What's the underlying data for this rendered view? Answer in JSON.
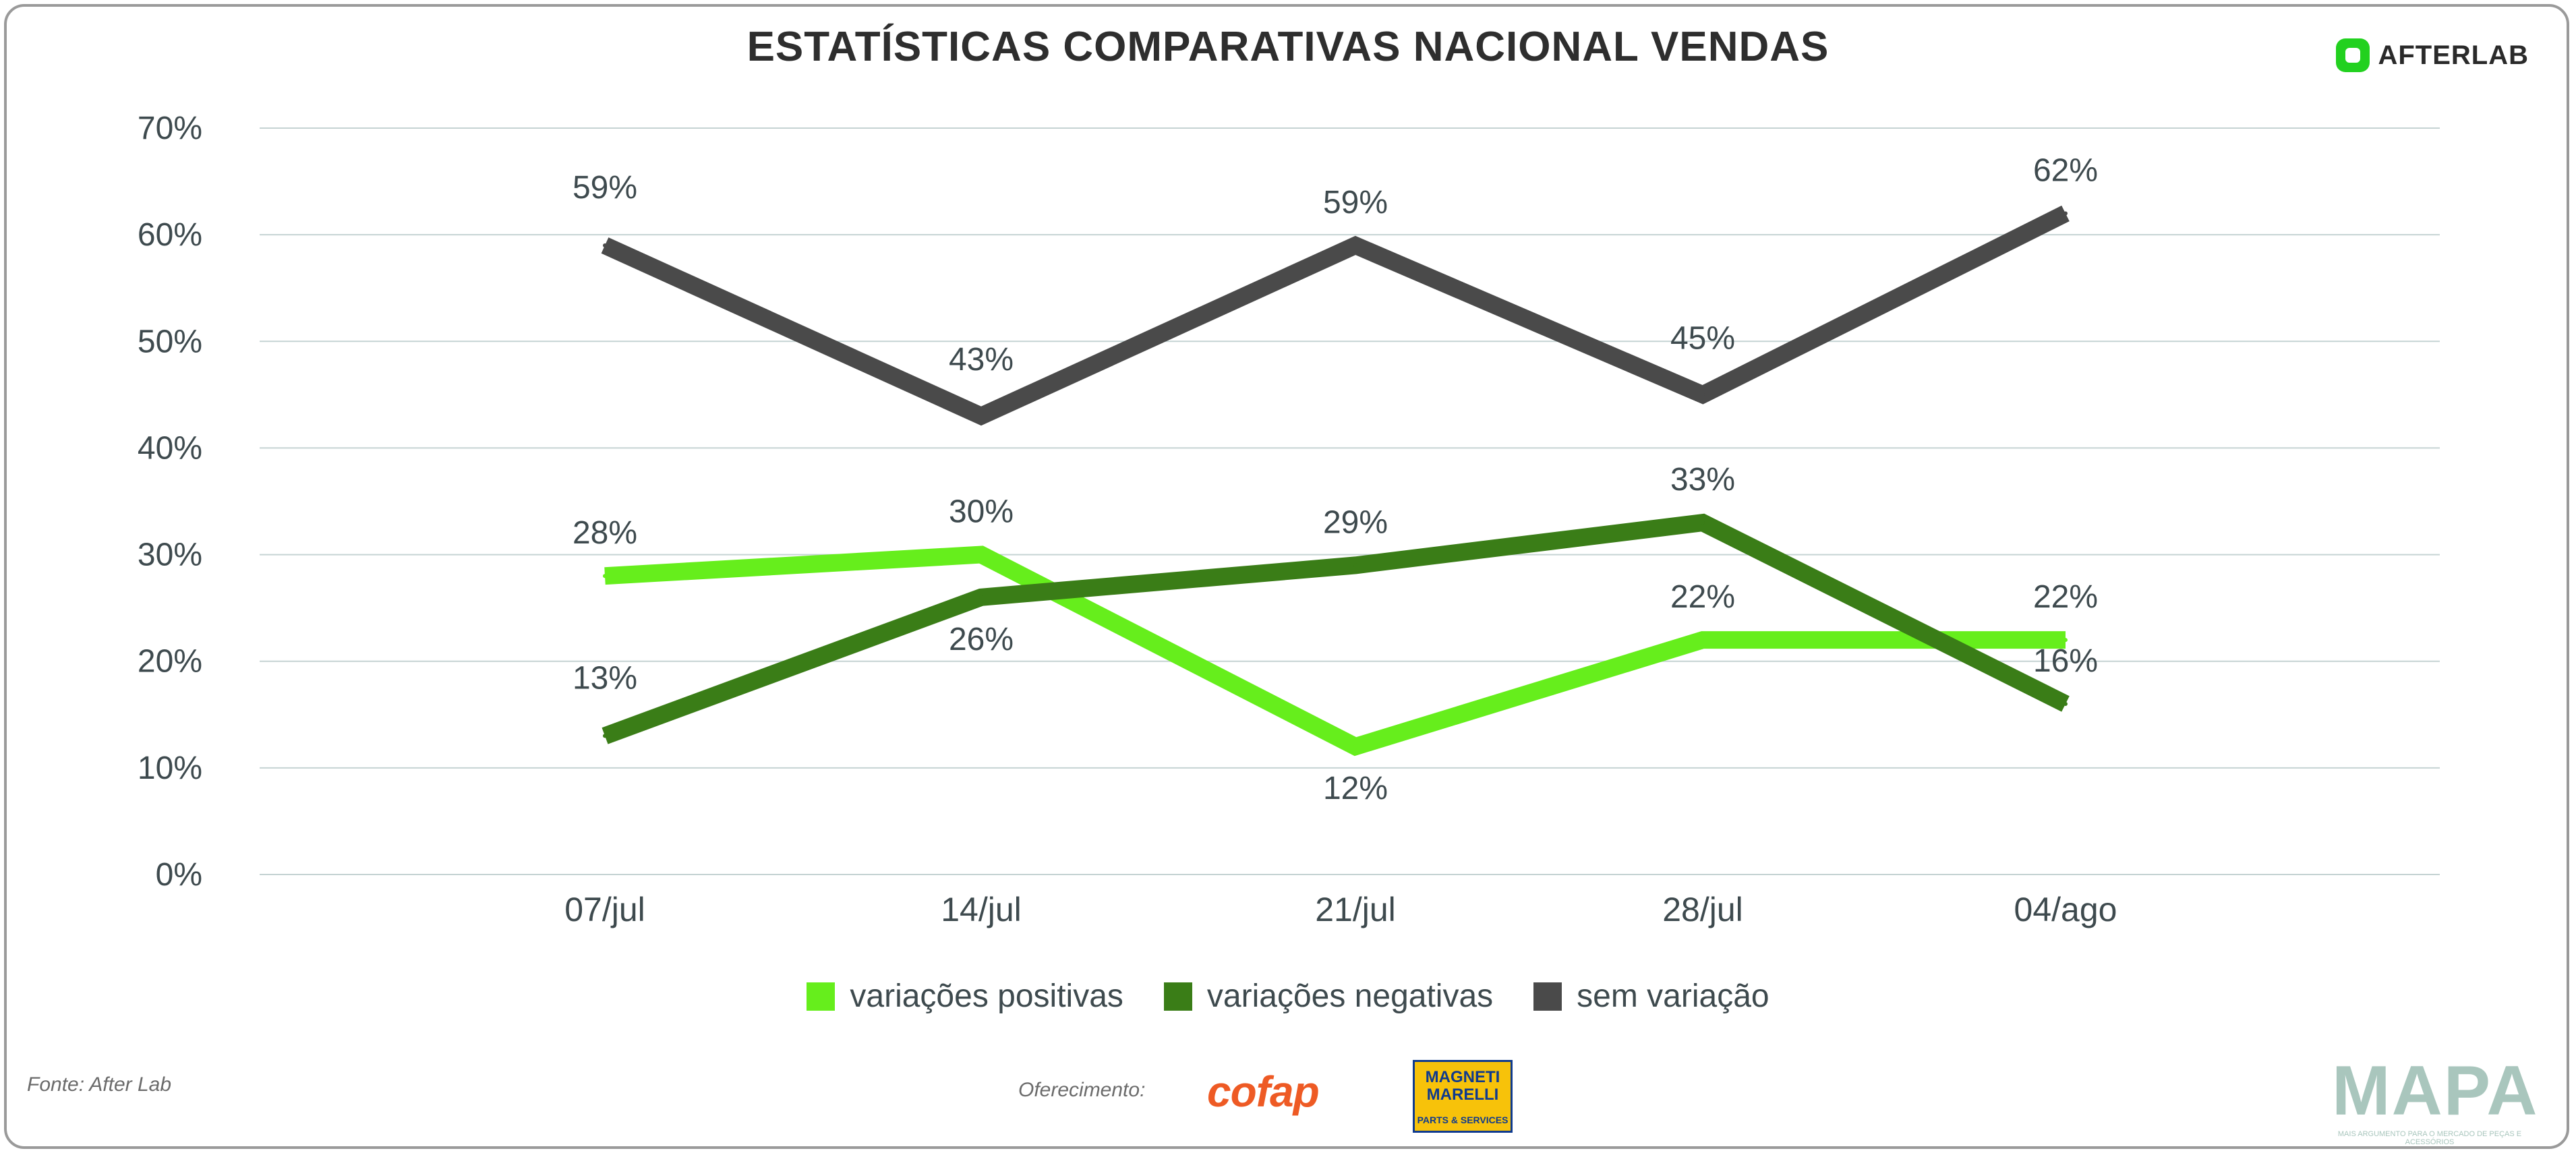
{
  "header": {
    "title": "ESTATÍSTICAS COMPARATIVAS NACIONAL VENDAS",
    "brand": "AFTERLAB"
  },
  "colors": {
    "positive": "#66ee1c",
    "negative": "#3a7d17",
    "neutral": "#4a4a4a",
    "grid": "#c5d3d3",
    "tick_text": "#3e4a4e"
  },
  "chart_data": {
    "type": "line",
    "title": "ESTATÍSTICAS COMPARATIVAS NACIONAL VENDAS",
    "categories": [
      "07/jul",
      "14/jul",
      "21/jul",
      "28/jul",
      "04/ago"
    ],
    "ylim": [
      0,
      70
    ],
    "yticks": [
      "0%",
      "10%",
      "20%",
      "30%",
      "40%",
      "50%",
      "60%",
      "70%"
    ],
    "grid": true,
    "legend_position": "bottom",
    "series": [
      {
        "name": "variações positivas",
        "values": [
          28,
          30,
          12,
          22,
          22
        ],
        "labels": [
          "28%",
          "30%",
          "12%",
          "22%",
          "22%"
        ]
      },
      {
        "name": "variações negativas",
        "values": [
          13,
          26,
          29,
          33,
          16
        ],
        "labels": [
          "13%",
          "26%",
          "29%",
          "33%",
          "16%"
        ]
      },
      {
        "name": "sem variação",
        "values": [
          59,
          43,
          59,
          45,
          62
        ],
        "labels": [
          "59%",
          "43%",
          "59%",
          "45%",
          "62%"
        ]
      }
    ]
  },
  "footer": {
    "source": "Fonte: After Lab",
    "sponsor_label": "Oferecimento:",
    "sponsor1": "cofap",
    "sponsor2_line1": "MAGNETI",
    "sponsor2_line2": "MARELLI",
    "sponsor2_line3": "PARTS & SERVICES",
    "mapa": "MAPA",
    "mapa_tagline": "MAIS ARGUMENTO PARA O MERCADO DE PEÇAS E ACESSÓRIOS"
  }
}
